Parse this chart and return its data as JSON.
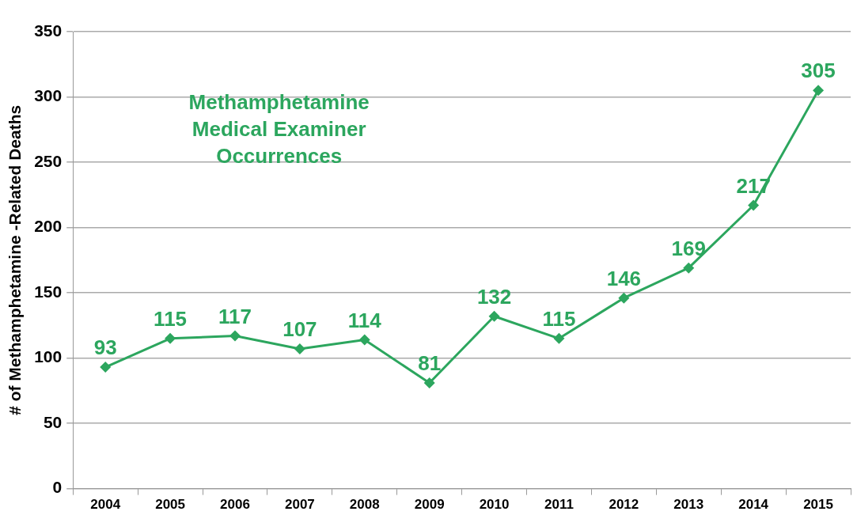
{
  "chart_data": {
    "type": "line",
    "ylabel": "# of Methamphetamine -Related Deaths",
    "categories": [
      "2004",
      "2005",
      "2006",
      "2007",
      "2008",
      "2009",
      "2010",
      "2011",
      "2012",
      "2013",
      "2014",
      "2015"
    ],
    "series": [
      {
        "name": "Methamphetamine Medical Examiner Occurrences",
        "color": "#2ca65e",
        "values": [
          93,
          115,
          117,
          107,
          114,
          81,
          132,
          115,
          146,
          169,
          217,
          305
        ]
      }
    ],
    "ylim": [
      0,
      350
    ],
    "yticks": [
      0,
      50,
      100,
      150,
      200,
      250,
      300,
      350
    ],
    "grid": "y",
    "marker": "diamond",
    "line_style": "solid",
    "data_labels": true,
    "legend": false
  }
}
